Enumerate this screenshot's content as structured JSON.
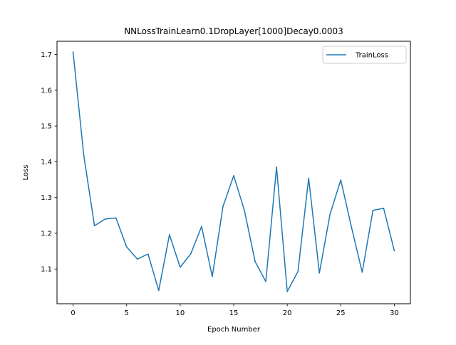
{
  "chart_data": {
    "type": "line",
    "title": "NNLossTrainLearn0.1DropLayer[1000]Decay0.0003",
    "xlabel": "Epoch Number",
    "ylabel": "Loss",
    "xlim": [
      -1.5,
      31.5
    ],
    "ylim": [
      1.003,
      1.737
    ],
    "xticks": [
      0,
      5,
      10,
      15,
      20,
      25,
      30
    ],
    "yticks": [
      1.1,
      1.2,
      1.3,
      1.4,
      1.5,
      1.6,
      1.7
    ],
    "xtick_labels": [
      "0",
      "5",
      "10",
      "15",
      "20",
      "25",
      "30"
    ],
    "ytick_labels": [
      "1.1",
      "1.2",
      "1.3",
      "1.4",
      "1.5",
      "1.6",
      "1.7"
    ],
    "grid": false,
    "legend_position": "upper right",
    "series": [
      {
        "name": "TrainLoss",
        "color": "#1f77b4",
        "x": [
          0,
          1,
          2,
          3,
          4,
          5,
          6,
          7,
          8,
          9,
          10,
          11,
          12,
          13,
          14,
          15,
          16,
          17,
          18,
          19,
          20,
          21,
          22,
          23,
          24,
          25,
          26,
          27,
          28,
          29,
          30
        ],
        "values": [
          1.707,
          1.418,
          1.221,
          1.24,
          1.243,
          1.162,
          1.128,
          1.142,
          1.04,
          1.196,
          1.105,
          1.143,
          1.219,
          1.079,
          1.275,
          1.361,
          1.264,
          1.121,
          1.065,
          1.385,
          1.037,
          1.093,
          1.354,
          1.089,
          1.254,
          1.349,
          1.217,
          1.091,
          1.264,
          1.27,
          1.151
        ]
      }
    ]
  }
}
